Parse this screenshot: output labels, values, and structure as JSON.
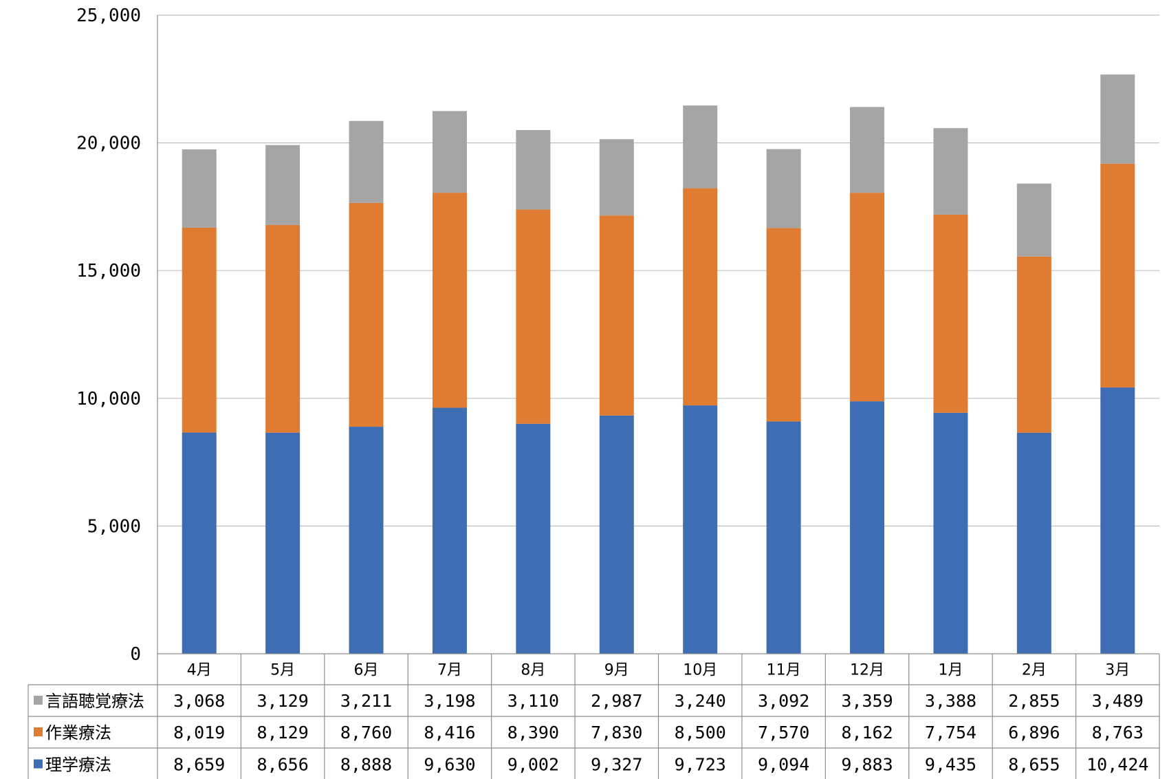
{
  "chart_data": {
    "type": "bar",
    "stacked": true,
    "categories": [
      "4月",
      "5月",
      "6月",
      "7月",
      "8月",
      "9月",
      "10月",
      "11月",
      "12月",
      "1月",
      "2月",
      "3月"
    ],
    "series": [
      {
        "name": "理学療法",
        "color": "#3f6db3",
        "values": [
          8659,
          8656,
          8888,
          9630,
          9002,
          9327,
          9723,
          9094,
          9883,
          9435,
          8655,
          10424
        ]
      },
      {
        "name": "作業療法",
        "color": "#e07b32",
        "values": [
          8019,
          8129,
          8760,
          8416,
          8390,
          7830,
          8500,
          7570,
          8162,
          7754,
          6896,
          8763
        ]
      },
      {
        "name": "言語聴覚療法",
        "color": "#a5a5a5",
        "values": [
          3068,
          3129,
          3211,
          3198,
          3110,
          2987,
          3240,
          3092,
          3359,
          3388,
          2855,
          3489
        ]
      }
    ],
    "table_rows": [
      {
        "name": "言語聴覚療法",
        "color": "#a5a5a5",
        "cells": [
          "3,068",
          "3,129",
          "3,211",
          "3,198",
          "3,110",
          "2,987",
          "3,240",
          "3,092",
          "3,359",
          "3,388",
          "2,855",
          "3,489"
        ]
      },
      {
        "name": "作業療法",
        "color": "#e07b32",
        "cells": [
          "8,019",
          "8,129",
          "8,760",
          "8,416",
          "8,390",
          "7,830",
          "8,500",
          "7,570",
          "8,162",
          "7,754",
          "6,896",
          "8,763"
        ]
      },
      {
        "name": "理学療法",
        "color": "#3f6db3",
        "cells": [
          "8,659",
          "8,656",
          "8,888",
          "9,630",
          "9,002",
          "9,327",
          "9,723",
          "9,094",
          "9,883",
          "9,435",
          "8,655",
          "10,424"
        ]
      }
    ],
    "ylim": [
      0,
      25000
    ],
    "yticks": [
      0,
      5000,
      10000,
      15000,
      20000,
      25000
    ],
    "ytick_labels": [
      "0",
      "5,000",
      "10,000",
      "15,000",
      "20,000",
      "25,000"
    ],
    "grid": true,
    "legend": "data-table",
    "title": "",
    "xlabel": "",
    "ylabel": ""
  }
}
